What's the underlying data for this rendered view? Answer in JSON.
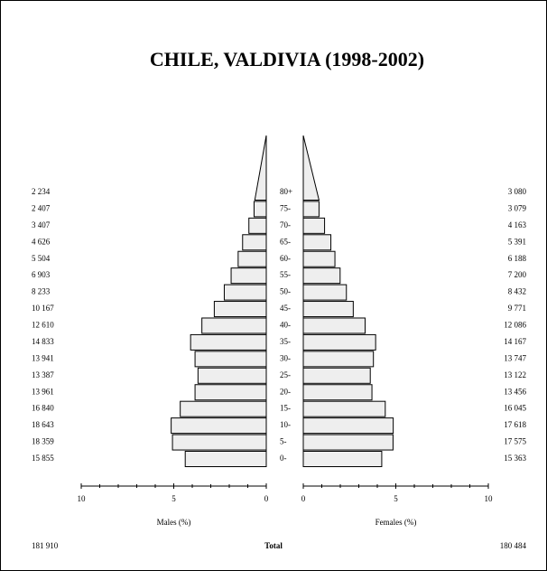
{
  "chart_data": {
    "type": "pyramid",
    "title": "CHILE, VALDIVIA (1998-2002)",
    "categories": [
      "0-",
      "5-",
      "10-",
      "15-",
      "20-",
      "25-",
      "30-",
      "35-",
      "40-",
      "45-",
      "50-",
      "55-",
      "60-",
      "65-",
      "70-",
      "75-",
      "80+"
    ],
    "series": [
      {
        "name": "Males (%)",
        "color": "#eeeeee",
        "values": [
          4.38,
          5.07,
          5.14,
          4.65,
          3.85,
          3.69,
          3.85,
          4.09,
          3.48,
          2.81,
          2.27,
          1.9,
          1.52,
          1.28,
          0.94,
          0.66,
          0.62
        ],
        "count_labels": [
          "15 855",
          "18 359",
          "18 643",
          "16 840",
          "13 961",
          "13 387",
          "13 941",
          "14 833",
          "12 610",
          "10 167",
          "8 233",
          "6 903",
          "5 504",
          "4 626",
          "3 407",
          "2 407",
          "2 234"
        ],
        "total_label": "181 910"
      },
      {
        "name": "Females (%)",
        "color": "#eeeeee",
        "values": [
          4.24,
          4.85,
          4.86,
          4.43,
          3.71,
          3.62,
          3.79,
          3.91,
          3.34,
          2.7,
          2.33,
          1.99,
          1.71,
          1.49,
          1.15,
          0.85,
          0.85
        ],
        "count_labels": [
          "15 363",
          "17 575",
          "17 618",
          "16 045",
          "13 456",
          "13 122",
          "13 747",
          "14 167",
          "12 086",
          "9 771",
          "8 432",
          "7 200",
          "6 188",
          "5 391",
          "4 163",
          "3 079",
          "3 080"
        ],
        "total_label": "180 484"
      }
    ],
    "total_text": "Total",
    "xlim": [
      0,
      10
    ],
    "xticks": [
      0,
      5,
      10
    ],
    "minor_xticks": [
      1,
      2,
      3,
      4,
      6,
      7,
      8,
      9
    ]
  }
}
